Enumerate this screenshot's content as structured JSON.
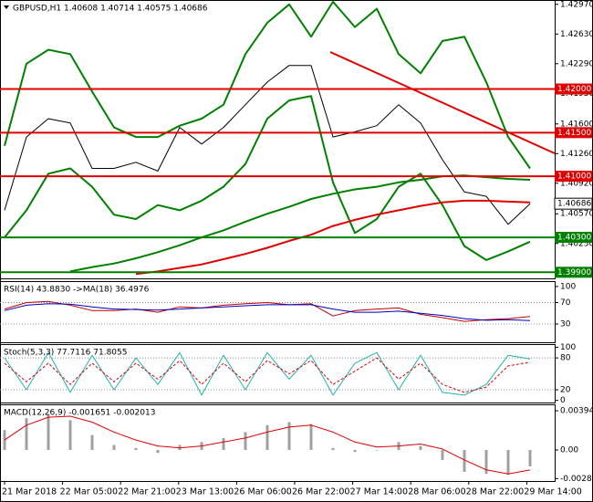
{
  "chart_data": [
    {
      "type": "line",
      "title": "GBPUSD,H1  1.40608 1.40714 1.40575 1.40686",
      "ylim": [
        1.3983,
        1.4302
      ],
      "yticks": [
        {
          "value": 1.4297,
          "label": "1.42970"
        },
        {
          "value": 1.4263,
          "label": "1.42630"
        },
        {
          "value": 1.4229,
          "label": "1.42290"
        },
        {
          "value": 1.4195,
          "label": "1.41950"
        },
        {
          "value": 1.416,
          "label": "1.41600"
        },
        {
          "value": 1.4126,
          "label": "1.41260"
        },
        {
          "value": 1.4092,
          "label": "1.40920"
        },
        {
          "value": 1.4057,
          "label": "1.40570"
        },
        {
          "value": 1.4023,
          "label": "1.40230"
        }
      ],
      "series": [
        {
          "style": "line",
          "width": 1,
          "color": "#000000",
          "values": [
            1.4061,
            1.4145,
            1.4166,
            1.4161,
            1.4109,
            1.4109,
            1.4116,
            1.4106,
            1.4156,
            1.4137,
            1.4156,
            1.4182,
            1.4208,
            1.4227,
            1.4227,
            1.4145,
            1.4151,
            1.4158,
            1.4182,
            1.4161,
            1.4119,
            1.4082,
            1.4077,
            1.4045,
            1.40686
          ]
        },
        {
          "style": "line",
          "width": 2,
          "color": "#008000",
          "values": [
            1.4135,
            1.4229,
            1.4245,
            1.424,
            1.4197,
            1.4156,
            1.4145,
            1.4145,
            1.4158,
            1.4166,
            1.4182,
            1.424,
            1.4276,
            1.4297,
            1.426,
            1.43,
            1.4271,
            1.4292,
            1.424,
            1.4218,
            1.4255,
            1.426,
            1.4208,
            1.4145,
            1.4109
          ]
        },
        {
          "style": "line",
          "width": 2,
          "color": "#008000",
          "values": [
            1.403,
            1.4061,
            1.4103,
            1.4109,
            1.4088,
            1.4056,
            1.4051,
            1.4067,
            1.4061,
            1.4072,
            1.4088,
            1.4114,
            1.4166,
            1.4187,
            1.4192,
            1.4093,
            1.4035,
            1.4051,
            1.4088,
            1.4103,
            1.4067,
            1.402,
            1.4004,
            1.4014,
            1.4025
          ]
        },
        {
          "style": "line",
          "width": 2,
          "color": "#008000",
          "values": [
            null,
            null,
            null,
            1.3991,
            1.3996,
            1.4,
            1.4006,
            1.4013,
            1.4021,
            1.403,
            1.4038,
            1.4048,
            1.4057,
            1.4065,
            1.4074,
            1.408,
            1.4085,
            1.4088,
            1.4093,
            1.4096,
            1.41,
            1.4101,
            1.4099,
            1.4097,
            1.4096
          ]
        },
        {
          "style": "line",
          "width": 2,
          "color": "#e00000",
          "values": [
            null,
            null,
            null,
            null,
            null,
            null,
            1.3988,
            1.3991,
            1.3995,
            1.3999,
            1.4005,
            1.4011,
            1.4018,
            1.4026,
            1.4033,
            1.4043,
            1.405,
            1.4056,
            1.4061,
            1.4066,
            1.407,
            1.4072,
            1.4072,
            1.4071,
            1.407
          ]
        }
      ],
      "levels": [
        {
          "value": 1.42,
          "label": "1.42000",
          "color": "#e00000"
        },
        {
          "value": 1.415,
          "label": "1.41500",
          "color": "#e00000"
        },
        {
          "value": 1.41,
          "label": "1.41000",
          "color": "#e00000"
        },
        {
          "value": 1.403,
          "label": "1.40300",
          "color": "#008000"
        },
        {
          "value": 1.399,
          "label": "1.39900",
          "color": "#008000"
        }
      ],
      "current": {
        "value": 1.40686,
        "label": "1.40686"
      }
    },
    {
      "type": "line",
      "title": "RSI(14) 43.8830  ->MA(18) 36.4976",
      "ylim": [
        -4,
        110
      ],
      "yticks": [
        100,
        70,
        30
      ],
      "guides": [
        70,
        30
      ],
      "series": [
        {
          "style": "line",
          "width": 1,
          "color": "#c00000",
          "values": [
            58,
            70,
            72,
            65,
            55,
            55,
            58,
            52,
            62,
            60,
            65,
            68,
            70,
            66,
            68,
            45,
            55,
            58,
            60,
            48,
            42,
            35,
            38,
            40,
            44
          ]
        },
        {
          "style": "line",
          "width": 1,
          "color": "#0000c0",
          "values": [
            55,
            65,
            68,
            67,
            62,
            58,
            57,
            56,
            58,
            60,
            62,
            64,
            66,
            66,
            66,
            58,
            52,
            52,
            54,
            50,
            46,
            40,
            37,
            38,
            36.5
          ]
        }
      ]
    },
    {
      "type": "line",
      "title": "Stoch(5,3,3) 77.7116 71.8055",
      "ylim": [
        -4,
        106
      ],
      "yticks": [
        100,
        80,
        20,
        0
      ],
      "guides": [
        80,
        20
      ],
      "series": [
        {
          "style": "line",
          "width": 1,
          "color": "#20b2aa",
          "values": [
            80,
            20,
            90,
            15,
            85,
            20,
            80,
            30,
            90,
            10,
            85,
            20,
            90,
            40,
            85,
            10,
            70,
            90,
            20,
            85,
            15,
            10,
            30,
            85,
            78
          ]
        },
        {
          "style": "dashed",
          "width": 1,
          "color": "#e00000",
          "values": [
            70,
            35,
            70,
            30,
            70,
            35,
            70,
            40,
            75,
            30,
            70,
            35,
            75,
            50,
            75,
            30,
            55,
            80,
            40,
            70,
            30,
            15,
            25,
            65,
            72
          ]
        }
      ]
    },
    {
      "type": "bar",
      "title": "MACD(12,26,9) -0.001651 -0.002013",
      "ylim": [
        -0.00312,
        0.00459
      ],
      "yticks": [
        0.003944,
        {
          "value": 0,
          "label": "0.00"
        },
        -0.002875
      ],
      "series": [
        {
          "style": "histogram",
          "width": 3,
          "color": "#a0a0a0",
          "values": [
            0.002,
            0.0032,
            0.0036,
            0.003,
            0.0015,
            0.0005,
            0.0002,
            -0.0003,
            0.0005,
            0.0008,
            0.0012,
            0.0018,
            0.0025,
            0.0028,
            0.0026,
            0.0002,
            -0.0002,
            0,
            0.0008,
            0.0004,
            -0.001,
            -0.0022,
            -0.0024,
            -0.0025,
            -0.001651
          ]
        },
        {
          "style": "line",
          "width": 1,
          "color": "#e00000",
          "values": [
            0.001,
            0.0025,
            0.0033,
            0.0034,
            0.0028,
            0.0018,
            0.001,
            0.0004,
            0.0002,
            0.0004,
            0.0008,
            0.0012,
            0.0018,
            0.0023,
            0.0025,
            0.0018,
            0.0008,
            0.0003,
            0.0004,
            0.0006,
            0.0001,
            -0.001,
            -0.002,
            -0.0024,
            -0.002013
          ]
        }
      ]
    }
  ],
  "time_axis": [
    "21 Mar 2018",
    "22 Mar 05:00",
    "22 Mar 21:00",
    "23 Mar 13:00",
    "26 Mar 06:00",
    "26 Mar 22:00",
    "27 Mar 14:00",
    "28 Mar 06:00",
    "28 Mar 22:00",
    "29 Mar 14:00"
  ]
}
